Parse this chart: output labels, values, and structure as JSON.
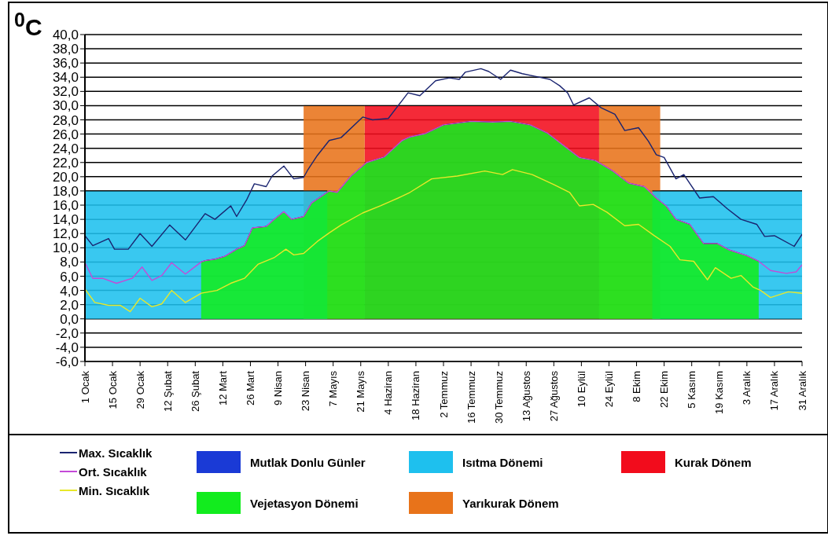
{
  "chart_data": {
    "type": "line",
    "ylabel": "$^{0}$C",
    "xlim": [
      "--01-01",
      "--12-31"
    ],
    "xticks": [
      {
        "value": "--01-01",
        "label": "1 Ocak"
      },
      {
        "value": "--01-15",
        "label": "15 Ocak"
      },
      {
        "value": "--01-29",
        "label": "29 Ocak"
      },
      {
        "value": "--02-12",
        "label": "12 Şubat"
      },
      {
        "value": "--02-26",
        "label": "26 Şubat"
      },
      {
        "value": "--03-12",
        "label": "12 Mart"
      },
      {
        "value": "--03-26",
        "label": "26 Mart"
      },
      {
        "value": "--04-09",
        "label": "9 Nisan"
      },
      {
        "value": "--04-23",
        "label": "23 Nisan"
      },
      {
        "value": "--05-07",
        "label": "7 Mayıs"
      },
      {
        "value": "--05-21",
        "label": "21 Mayıs"
      },
      {
        "value": "--06-04",
        "label": "4 Haziran"
      },
      {
        "value": "--06-18",
        "label": "18 Haziran"
      },
      {
        "value": "--07-02",
        "label": "2 Temmuz"
      },
      {
        "value": "--07-16",
        "label": "16 Temmuz"
      },
      {
        "value": "--07-30",
        "label": "30 Temmuz"
      },
      {
        "value": "--08-13",
        "label": "13 Ağustos"
      },
      {
        "value": "--08-27",
        "label": "27 Ağustos"
      },
      {
        "value": "--09-10",
        "label": "10 Eylül"
      },
      {
        "value": "--09-24",
        "label": "24 Eylül"
      },
      {
        "value": "--10-08",
        "label": "8 Ekim"
      },
      {
        "value": "--10-22",
        "label": "22 Ekim"
      },
      {
        "value": "--11-05",
        "label": "5 Kasım"
      },
      {
        "value": "--11-19",
        "label": "19 Kasım"
      },
      {
        "value": "--12-03",
        "label": "3 Aralık"
      },
      {
        "value": "--12-17",
        "label": "17 Aralık"
      },
      {
        "value": "--12-31",
        "label": "31 Aralık"
      }
    ],
    "ylim": [
      -6,
      40
    ],
    "yticks": [
      {
        "value": -6,
        "label": "-6,0"
      },
      {
        "value": -4,
        "label": "-4,0"
      },
      {
        "value": -2,
        "label": "-2,0"
      },
      {
        "value": 0,
        "label": "0,0"
      },
      {
        "value": 2,
        "label": "2,0"
      },
      {
        "value": 4,
        "label": "4,0"
      },
      {
        "value": 6,
        "label": "6,0"
      },
      {
        "value": 8,
        "label": "8,0"
      },
      {
        "value": 10,
        "label": "10,0"
      },
      {
        "value": 12,
        "label": "12,0"
      },
      {
        "value": 14,
        "label": "14,0"
      },
      {
        "value": 16,
        "label": "16,0"
      },
      {
        "value": 18,
        "label": "18,0"
      },
      {
        "value": 20,
        "label": "20,0"
      },
      {
        "value": 22,
        "label": "22,0"
      },
      {
        "value": 24,
        "label": "24,0"
      },
      {
        "value": 26,
        "label": "26,0"
      },
      {
        "value": 28,
        "label": "28,0"
      },
      {
        "value": 30,
        "label": "30,0"
      },
      {
        "value": 32,
        "label": "32,0"
      },
      {
        "value": 34,
        "label": "34,0"
      },
      {
        "value": 36,
        "label": "36,0"
      },
      {
        "value": 38,
        "label": "38,0"
      },
      {
        "value": 40,
        "label": "40,0"
      }
    ],
    "grid": "y",
    "legend": "bottom",
    "series": [
      {
        "name": "Mutlak Donlu Günler",
        "type": "area",
        "color": "#1a3ad6"
      },
      {
        "name": "Vejetasyon Dönemi",
        "type": "area",
        "color": "#12ec1e",
        "x": [
          "--03-01",
          "--03-03",
          "--03-08",
          "--03-13",
          "--03-19",
          "--03-23",
          "--03-27",
          "--04-03",
          "--04-07",
          "--04-12",
          "--04-16",
          "--04-22",
          "--04-26",
          "--05-05",
          "--05-09",
          "--05-16",
          "--05-24",
          "--06-02",
          "--06-11",
          "--06-15",
          "--06-23",
          "--07-02",
          "--07-16",
          "--07-27",
          "--08-05",
          "--08-15",
          "--08-24",
          "--09-01",
          "--09-09",
          "--09-17",
          "--09-26",
          "--10-04",
          "--10-12",
          "--10-18",
          "--10-23",
          "--10-28",
          "--11-04",
          "--11-11",
          "--11-18",
          "--11-24",
          "--12-03",
          "--12-09"
        ],
        "values": [
          8.0,
          8.2,
          8.4,
          8.8,
          9.8,
          10.3,
          12.8,
          13.0,
          14.0,
          15.1,
          14.0,
          14.4,
          16.3,
          18.0,
          17.8,
          20.1,
          22.0,
          22.8,
          25.1,
          25.6,
          26.1,
          27.3,
          27.8,
          27.7,
          27.8,
          27.3,
          26.1,
          24.4,
          22.7,
          22.3,
          20.8,
          19.1,
          18.6,
          17.0,
          15.9,
          14.0,
          13.3,
          10.6,
          10.6,
          9.7,
          8.9,
          8.1
        ]
      },
      {
        "name": "Isıtma Dönemi",
        "type": "area",
        "color": "#1ec0ee",
        "x": [
          "--01-01",
          "--05-04",
          "--05-05",
          "--10-16",
          "--12-31"
        ],
        "values": [
          18,
          18,
          null,
          18,
          18
        ]
      },
      {
        "name": "Yarıkurak Dönem",
        "type": "area",
        "color": "#e8731a",
        "x": [
          "--04-22",
          "--05-23",
          "--05-24",
          "--09-19",
          "--10-20"
        ],
        "values": [
          30,
          30,
          null,
          30,
          30
        ]
      },
      {
        "name": "Kurak Dönem",
        "type": "area",
        "color": "#f20c1c",
        "x": [
          "--05-23",
          "--09-19"
        ],
        "values": [
          30,
          30
        ]
      },
      {
        "name": "Max. Sıcaklık",
        "color": "#1a2470",
        "x": [
          "--01-01",
          "--01-05",
          "--01-13",
          "--01-16",
          "--01-23",
          "--01-29",
          "--02-04",
          "--02-13",
          "--02-21",
          "--03-03",
          "--03-08",
          "--03-16",
          "--03-19",
          "--03-24",
          "--03-28",
          "--04-03",
          "--04-06",
          "--04-12",
          "--04-17",
          "--04-22",
          "--04-24",
          "--04-29",
          "--05-05",
          "--05-11",
          "--05-22",
          "--05-27",
          "--06-04",
          "--06-14",
          "--06-20",
          "--06-28",
          "--07-05",
          "--07-10",
          "--07-13",
          "--07-21",
          "--07-25",
          "--07-31",
          "--08-05",
          "--08-11",
          "--08-18",
          "--08-25",
          "--08-30",
          "--09-03",
          "--09-06",
          "--09-14",
          "--09-20",
          "--09-27",
          "--10-02",
          "--10-09",
          "--10-14",
          "--10-18",
          "--10-22",
          "--10-28",
          "--11-01",
          "--11-09",
          "--11-16",
          "--11-23",
          "--11-30",
          "--12-08",
          "--12-12",
          "--12-17",
          "--12-27",
          "--12-31"
        ],
        "values": [
          11.7,
          10.3,
          11.3,
          9.8,
          9.8,
          12.0,
          10.2,
          13.2,
          11.1,
          14.8,
          14.0,
          15.9,
          14.4,
          16.7,
          19.0,
          18.6,
          20.1,
          21.5,
          19.7,
          19.9,
          20.9,
          23.0,
          25.1,
          25.5,
          28.4,
          28.0,
          28.2,
          31.8,
          31.4,
          33.5,
          33.9,
          33.7,
          34.7,
          35.2,
          34.8,
          33.7,
          35.0,
          34.5,
          34.1,
          33.7,
          32.8,
          31.8,
          30.1,
          31.1,
          29.7,
          28.8,
          26.5,
          26.9,
          25.0,
          23.1,
          22.7,
          19.7,
          20.3,
          17.0,
          17.2,
          15.5,
          14.0,
          13.3,
          11.6,
          11.7,
          10.2,
          11.9
        ]
      },
      {
        "name": "Ort. Sıcaklık",
        "color": "#c44ad8",
        "x": [
          "--01-01",
          "--01-05",
          "--01-10",
          "--01-17",
          "--01-25",
          "--01-30",
          "--02-04",
          "--02-09",
          "--02-14",
          "--02-21",
          "--03-01",
          "--03-03",
          "--03-08",
          "--03-13",
          "--03-19",
          "--03-23",
          "--03-27",
          "--04-03",
          "--04-07",
          "--04-12",
          "--04-16",
          "--04-22",
          "--04-26",
          "--05-05",
          "--05-09",
          "--05-16",
          "--05-24",
          "--06-02",
          "--06-11",
          "--06-15",
          "--06-23",
          "--07-02",
          "--07-16",
          "--07-27",
          "--08-05",
          "--08-15",
          "--08-24",
          "--09-01",
          "--09-09",
          "--09-17",
          "--09-26",
          "--10-04",
          "--10-12",
          "--10-18",
          "--10-23",
          "--10-28",
          "--11-04",
          "--11-11",
          "--11-18",
          "--11-24",
          "--12-03",
          "--12-09",
          "--12-15",
          "--12-23",
          "--12-28",
          "--12-31"
        ],
        "values": [
          7.9,
          5.7,
          5.7,
          5.0,
          5.7,
          7.3,
          5.4,
          6.1,
          7.9,
          6.3,
          8.0,
          8.2,
          8.4,
          8.8,
          9.8,
          10.3,
          12.8,
          13.0,
          14.0,
          15.1,
          14.0,
          14.4,
          16.3,
          18.0,
          17.8,
          20.1,
          22.0,
          22.8,
          25.1,
          25.6,
          26.1,
          27.3,
          27.8,
          27.7,
          27.8,
          27.3,
          26.1,
          24.4,
          22.7,
          22.3,
          20.8,
          19.1,
          18.6,
          17.0,
          15.9,
          14.0,
          13.3,
          10.6,
          10.6,
          9.7,
          8.9,
          8.1,
          6.8,
          6.4,
          6.6,
          7.6
        ]
      },
      {
        "name": "Min. Sıcaklık",
        "color": "#e8e82a",
        "x": [
          "--01-01",
          "--01-06",
          "--01-13",
          "--01-19",
          "--01-24",
          "--01-29",
          "--02-04",
          "--02-09",
          "--02-14",
          "--02-21",
          "--03-01",
          "--03-09",
          "--03-16",
          "--03-23",
          "--03-30",
          "--04-07",
          "--04-13",
          "--04-17",
          "--04-22",
          "--04-29",
          "--05-05",
          "--05-11",
          "--05-22",
          "--05-31",
          "--06-09",
          "--06-15",
          "--06-26",
          "--07-09",
          "--07-23",
          "--08-01",
          "--08-06",
          "--08-16",
          "--08-27",
          "--09-04",
          "--09-09",
          "--09-16",
          "--09-23",
          "--10-02",
          "--10-09",
          "--10-17",
          "--10-25",
          "--10-30",
          "--11-06",
          "--11-13",
          "--11-17",
          "--11-25",
          "--11-30",
          "--12-06",
          "--12-10",
          "--12-15",
          "--12-24",
          "--12-31"
        ],
        "values": [
          4.2,
          2.3,
          1.9,
          1.9,
          1.0,
          2.9,
          1.7,
          2.1,
          4.0,
          2.3,
          3.6,
          4.0,
          5.0,
          5.7,
          7.7,
          8.6,
          9.8,
          9.0,
          9.2,
          10.9,
          12.1,
          13.2,
          14.9,
          15.9,
          17.0,
          17.8,
          19.7,
          20.1,
          20.8,
          20.3,
          21.0,
          20.3,
          18.9,
          17.8,
          15.9,
          16.1,
          15.0,
          13.1,
          13.3,
          11.7,
          10.2,
          8.3,
          8.1,
          5.5,
          7.2,
          5.7,
          6.1,
          4.5,
          4.0,
          3.0,
          3.8,
          3.6
        ]
      }
    ]
  }
}
